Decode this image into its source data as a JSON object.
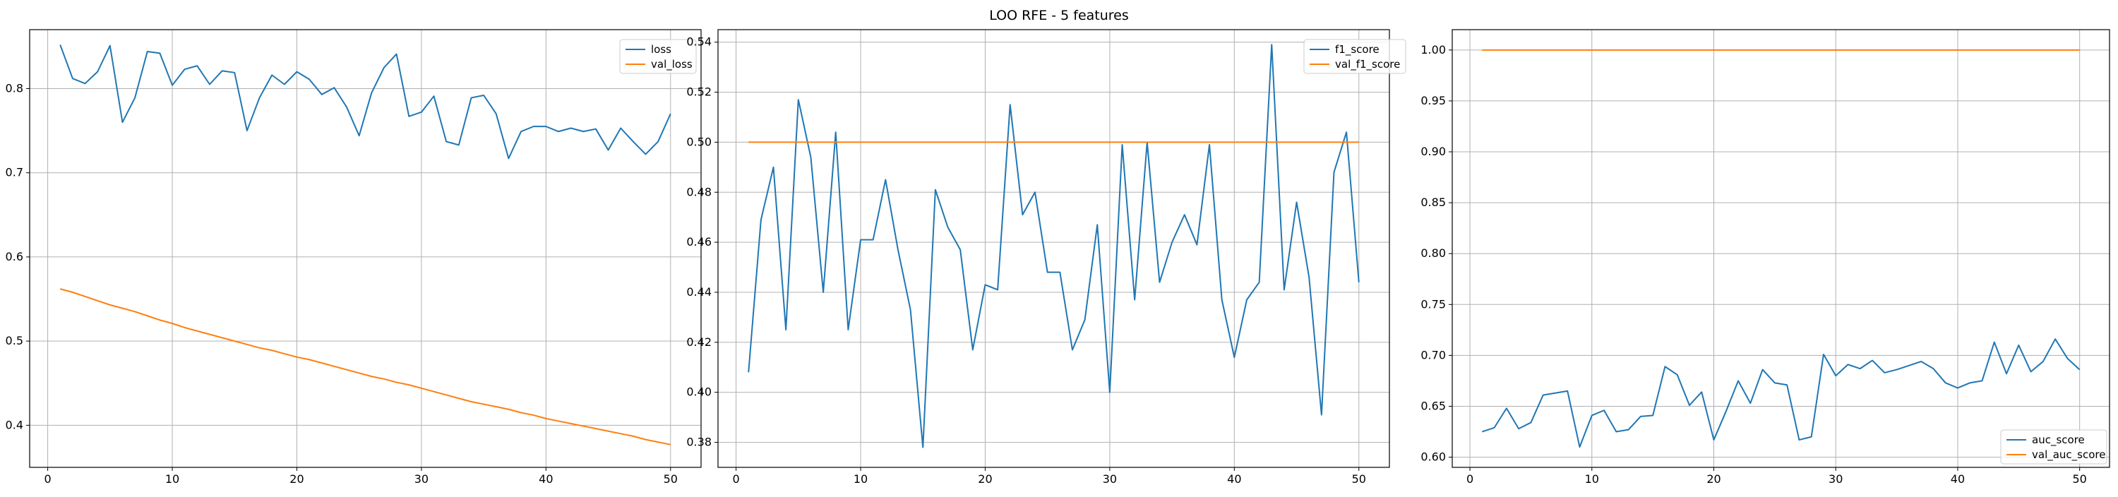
{
  "figure": {
    "title": "LOO RFE - 5 features"
  },
  "chart_data": [
    {
      "type": "line",
      "xlim": [
        -1.45,
        52.45
      ],
      "ylim": [
        0.35,
        0.87
      ],
      "xticks": [
        0,
        10,
        20,
        30,
        40,
        50
      ],
      "yticks": [
        0.4,
        0.5,
        0.6,
        0.7,
        0.8
      ],
      "ytick_labels": [
        "0.4",
        "0.5",
        "0.6",
        "0.7",
        "0.8"
      ],
      "grid": true,
      "legend_position": "upper right",
      "x": [
        1,
        2,
        3,
        4,
        5,
        6,
        7,
        8,
        9,
        10,
        11,
        12,
        13,
        14,
        15,
        16,
        17,
        18,
        19,
        20,
        21,
        22,
        23,
        24,
        25,
        26,
        27,
        28,
        29,
        30,
        31,
        32,
        33,
        34,
        35,
        36,
        37,
        38,
        39,
        40,
        41,
        42,
        43,
        44,
        45,
        46,
        47,
        48,
        49,
        50
      ],
      "series": [
        {
          "name": "loss",
          "color": "#1f77b4",
          "values": [
            0.852,
            0.812,
            0.806,
            0.82,
            0.851,
            0.76,
            0.789,
            0.844,
            0.842,
            0.804,
            0.823,
            0.827,
            0.805,
            0.821,
            0.819,
            0.75,
            0.789,
            0.816,
            0.805,
            0.82,
            0.811,
            0.793,
            0.801,
            0.778,
            0.744,
            0.795,
            0.825,
            0.841,
            0.767,
            0.772,
            0.791,
            0.737,
            0.733,
            0.789,
            0.792,
            0.77,
            0.717,
            0.749,
            0.755,
            0.755,
            0.749,
            0.753,
            0.749,
            0.752,
            0.727,
            0.753,
            0.737,
            0.722,
            0.737,
            0.77
          ]
        },
        {
          "name": "val_loss",
          "color": "#ff7f0e",
          "values": [
            0.562,
            0.558,
            0.553,
            0.548,
            0.543,
            0.539,
            0.535,
            0.53,
            0.525,
            0.521,
            0.516,
            0.512,
            0.508,
            0.504,
            0.5,
            0.496,
            0.492,
            0.489,
            0.485,
            0.481,
            0.478,
            0.474,
            0.47,
            0.466,
            0.462,
            0.458,
            0.455,
            0.451,
            0.448,
            0.444,
            0.44,
            0.436,
            0.432,
            0.428,
            0.425,
            0.422,
            0.419,
            0.415,
            0.412,
            0.408,
            0.405,
            0.402,
            0.399,
            0.396,
            0.393,
            0.39,
            0.387,
            0.383,
            0.38,
            0.377
          ]
        }
      ]
    },
    {
      "type": "line",
      "xlim": [
        -1.45,
        52.45
      ],
      "ylim": [
        0.37,
        0.545
      ],
      "xticks": [
        0,
        10,
        20,
        30,
        40,
        50
      ],
      "yticks": [
        0.38,
        0.4,
        0.42,
        0.44,
        0.46,
        0.48,
        0.5,
        0.52,
        0.54
      ],
      "ytick_labels": [
        "0.38",
        "0.40",
        "0.42",
        "0.44",
        "0.46",
        "0.48",
        "0.50",
        "0.52",
        "0.54"
      ],
      "grid": true,
      "legend_position": "upper right",
      "x": [
        1,
        2,
        3,
        4,
        5,
        6,
        7,
        8,
        9,
        10,
        11,
        12,
        13,
        14,
        15,
        16,
        17,
        18,
        19,
        20,
        21,
        22,
        23,
        24,
        25,
        26,
        27,
        28,
        29,
        30,
        31,
        32,
        33,
        34,
        35,
        36,
        37,
        38,
        39,
        40,
        41,
        42,
        43,
        44,
        45,
        46,
        47,
        48,
        49,
        50
      ],
      "series": [
        {
          "name": "f1_score",
          "color": "#1f77b4",
          "values": [
            0.408,
            0.469,
            0.49,
            0.425,
            0.517,
            0.494,
            0.44,
            0.504,
            0.425,
            0.461,
            0.461,
            0.485,
            0.457,
            0.433,
            0.378,
            0.481,
            0.466,
            0.457,
            0.417,
            0.443,
            0.441,
            0.515,
            0.471,
            0.48,
            0.448,
            0.448,
            0.417,
            0.429,
            0.467,
            0.4,
            0.499,
            0.437,
            0.5,
            0.444,
            0.46,
            0.471,
            0.459,
            0.499,
            0.437,
            0.414,
            0.437,
            0.444,
            0.539,
            0.441,
            0.476,
            0.446,
            0.391,
            0.488,
            0.504,
            0.444
          ]
        },
        {
          "name": "val_f1_score",
          "color": "#ff7f0e",
          "values": [
            0.5,
            0.5,
            0.5,
            0.5,
            0.5,
            0.5,
            0.5,
            0.5,
            0.5,
            0.5,
            0.5,
            0.5,
            0.5,
            0.5,
            0.5,
            0.5,
            0.5,
            0.5,
            0.5,
            0.5,
            0.5,
            0.5,
            0.5,
            0.5,
            0.5,
            0.5,
            0.5,
            0.5,
            0.5,
            0.5,
            0.5,
            0.5,
            0.5,
            0.5,
            0.5,
            0.5,
            0.5,
            0.5,
            0.5,
            0.5,
            0.5,
            0.5,
            0.5,
            0.5,
            0.5,
            0.5,
            0.5,
            0.5,
            0.5,
            0.5
          ]
        }
      ]
    },
    {
      "type": "line",
      "xlim": [
        -1.45,
        52.45
      ],
      "ylim": [
        0.59,
        1.02
      ],
      "xticks": [
        0,
        10,
        20,
        30,
        40,
        50
      ],
      "yticks": [
        0.6,
        0.65,
        0.7,
        0.75,
        0.8,
        0.85,
        0.9,
        0.95,
        1.0
      ],
      "ytick_labels": [
        "0.60",
        "0.65",
        "0.70",
        "0.75",
        "0.80",
        "0.85",
        "0.90",
        "0.95",
        "1.00"
      ],
      "grid": true,
      "legend_position": "lower right",
      "x": [
        1,
        2,
        3,
        4,
        5,
        6,
        7,
        8,
        9,
        10,
        11,
        12,
        13,
        14,
        15,
        16,
        17,
        18,
        19,
        20,
        21,
        22,
        23,
        24,
        25,
        26,
        27,
        28,
        29,
        30,
        31,
        32,
        33,
        34,
        35,
        36,
        37,
        38,
        39,
        40,
        41,
        42,
        43,
        44,
        45,
        46,
        47,
        48,
        49,
        50
      ],
      "series": [
        {
          "name": "auc_score",
          "color": "#1f77b4",
          "values": [
            0.625,
            0.629,
            0.648,
            0.628,
            0.634,
            0.661,
            0.663,
            0.665,
            0.61,
            0.641,
            0.646,
            0.625,
            0.627,
            0.64,
            0.641,
            0.689,
            0.681,
            0.651,
            0.664,
            0.617,
            0.645,
            0.675,
            0.653,
            0.686,
            0.673,
            0.671,
            0.617,
            0.62,
            0.701,
            0.68,
            0.691,
            0.687,
            0.695,
            0.683,
            0.686,
            0.69,
            0.694,
            0.687,
            0.673,
            0.668,
            0.673,
            0.675,
            0.713,
            0.682,
            0.71,
            0.684,
            0.694,
            0.716,
            0.697,
            0.686
          ]
        },
        {
          "name": "val_auc_score",
          "color": "#ff7f0e",
          "values": [
            1.0,
            1.0,
            1.0,
            1.0,
            1.0,
            1.0,
            1.0,
            1.0,
            1.0,
            1.0,
            1.0,
            1.0,
            1.0,
            1.0,
            1.0,
            1.0,
            1.0,
            1.0,
            1.0,
            1.0,
            1.0,
            1.0,
            1.0,
            1.0,
            1.0,
            1.0,
            1.0,
            1.0,
            1.0,
            1.0,
            1.0,
            1.0,
            1.0,
            1.0,
            1.0,
            1.0,
            1.0,
            1.0,
            1.0,
            1.0,
            1.0,
            1.0,
            1.0,
            1.0,
            1.0,
            1.0,
            1.0,
            1.0,
            1.0,
            1.0
          ]
        }
      ]
    }
  ]
}
